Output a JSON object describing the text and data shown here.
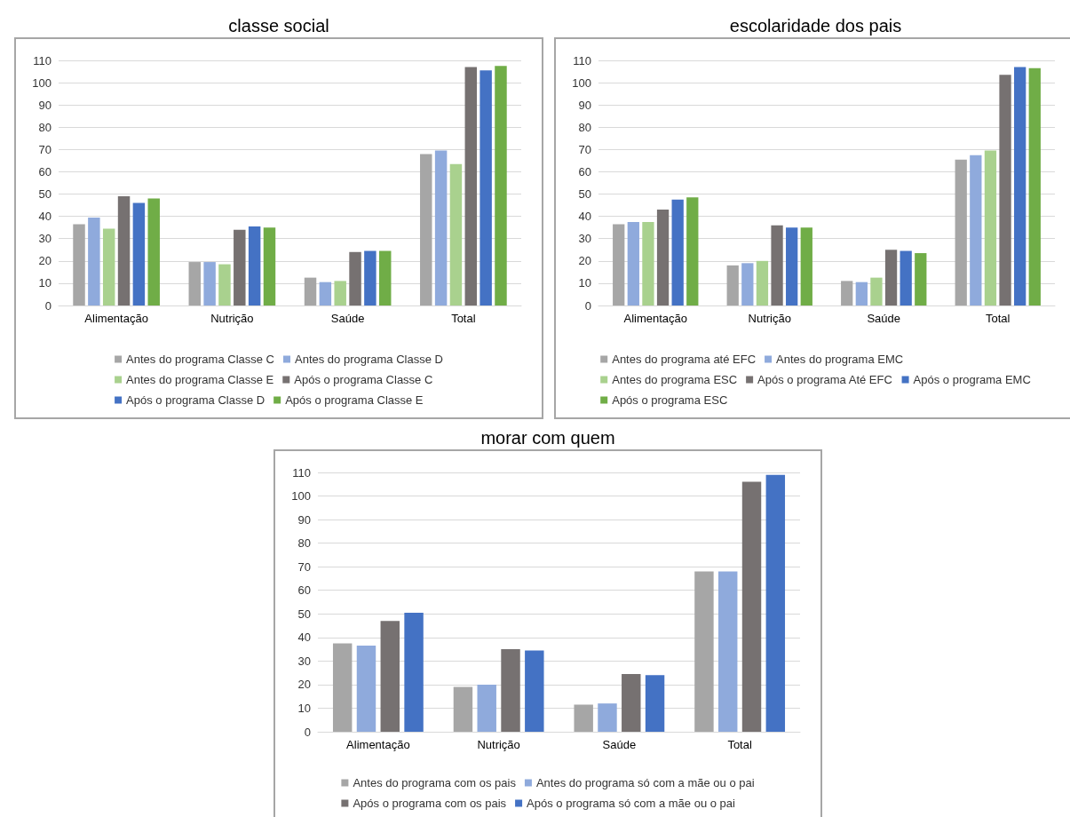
{
  "chart_data": [
    {
      "type": "bar",
      "title": "classe social",
      "categories": [
        "Alimentação",
        "Nutrição",
        "Saúde",
        "Total"
      ],
      "ylim": [
        0,
        110
      ],
      "yticks": [
        0,
        10,
        20,
        30,
        40,
        50,
        60,
        70,
        80,
        90,
        100,
        110
      ],
      "grid": "y",
      "legend": "bottom",
      "series": [
        {
          "name": "Antes do programa Classe C",
          "color": "#a6a6a6",
          "values": [
            36.5,
            19.5,
            12.5,
            68
          ]
        },
        {
          "name": "Antes do programa Classe D",
          "color": "#8faadc",
          "values": [
            39.5,
            19.5,
            10.5,
            69.5
          ]
        },
        {
          "name": "Antes do programa Classe E",
          "color": "#a9d18e",
          "values": [
            34.5,
            18.5,
            11,
            63.5
          ]
        },
        {
          "name": "Após o programa Classe C",
          "color": "#767171",
          "values": [
            49,
            34,
            24,
            107
          ]
        },
        {
          "name": "Após o programa Classe D",
          "color": "#4472c4",
          "values": [
            46,
            35.5,
            24.5,
            105.5
          ]
        },
        {
          "name": "Após o programa Classe E",
          "color": "#70ad47",
          "values": [
            48,
            35,
            24.5,
            107.5
          ]
        }
      ]
    },
    {
      "type": "bar",
      "title": "escolaridade dos pais",
      "categories": [
        "Alimentação",
        "Nutrição",
        "Saúde",
        "Total"
      ],
      "ylim": [
        0,
        110
      ],
      "yticks": [
        0,
        10,
        20,
        30,
        40,
        50,
        60,
        70,
        80,
        90,
        100,
        110
      ],
      "grid": "y",
      "legend": "bottom",
      "series": [
        {
          "name": "Antes do programa até EFC",
          "color": "#a6a6a6",
          "values": [
            36.5,
            18,
            11,
            65.5
          ]
        },
        {
          "name": "Antes do programa EMC",
          "color": "#8faadc",
          "values": [
            37.5,
            19,
            10.5,
            67.5
          ]
        },
        {
          "name": "Antes do programa ESC",
          "color": "#a9d18e",
          "values": [
            37.5,
            20,
            12.5,
            69.5
          ]
        },
        {
          "name": "Após o programa Até EFC",
          "color": "#767171",
          "values": [
            43,
            36,
            25,
            103.5
          ]
        },
        {
          "name": "Após o programa EMC",
          "color": "#4472c4",
          "values": [
            47.5,
            35,
            24.5,
            107
          ]
        },
        {
          "name": "Após o programa ESC",
          "color": "#70ad47",
          "values": [
            48.5,
            35,
            23.5,
            106.5
          ]
        }
      ]
    },
    {
      "type": "bar",
      "title": "morar com quem",
      "categories": [
        "Alimentação",
        "Nutrição",
        "Saúde",
        "Total"
      ],
      "ylim": [
        0,
        110
      ],
      "yticks": [
        0,
        10,
        20,
        30,
        40,
        50,
        60,
        70,
        80,
        90,
        100,
        110
      ],
      "grid": "y",
      "legend": "bottom",
      "series": [
        {
          "name": "Antes do programa com os pais",
          "color": "#a6a6a6",
          "values": [
            37.5,
            19,
            11.5,
            68
          ]
        },
        {
          "name": "Antes do programa só com a mãe ou o pai",
          "color": "#8faadc",
          "values": [
            36.5,
            20,
            12,
            68
          ]
        },
        {
          "name": "Após o programa com os pais",
          "color": "#767171",
          "values": [
            47,
            35,
            24.5,
            106
          ]
        },
        {
          "name": "Após o programa só com a mãe ou o pai",
          "color": "#4472c4",
          "values": [
            50.5,
            34.5,
            24,
            109
          ]
        }
      ]
    }
  ]
}
